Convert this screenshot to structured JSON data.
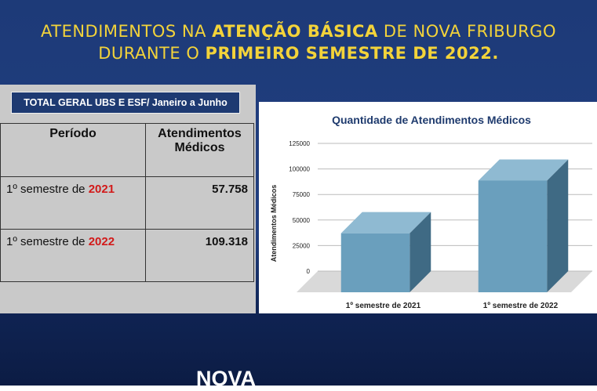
{
  "header": {
    "line1": [
      "ATENDIMENTOS NA",
      "ATENÇÃO BÁSICA",
      "DE NOVA FRIBURGO"
    ],
    "line2": [
      "DURANTE O",
      "PRIMEIRO SEMESTRE DE 2022."
    ]
  },
  "table": {
    "label": "TOTAL GERAL UBS E ESF/ Janeiro a Junho",
    "columns": [
      "Período",
      "Atendimentos Médicos"
    ],
    "rows": [
      [
        [
          "1º semestre de",
          "2021"
        ],
        "57.758"
      ],
      [
        [
          "1º semestre de",
          "2022"
        ],
        "109.318"
      ]
    ]
  },
  "chart_data": {
    "type": "bar",
    "title": "Quantidade de Atendimentos Médicos",
    "y_label": "Atendimentos Médicos",
    "categories": [
      "1º semestre de 2021",
      "1º semestre de 2022"
    ],
    "values": [
      57758,
      109318
    ],
    "color": "#6a9fbd",
    "ylim": [
      0,
      125000
    ],
    "yticks": [
      0,
      25000,
      50000,
      75000,
      100000,
      125000
    ],
    "grid": true
  },
  "footer": {
    "brand": "NOVA"
  }
}
